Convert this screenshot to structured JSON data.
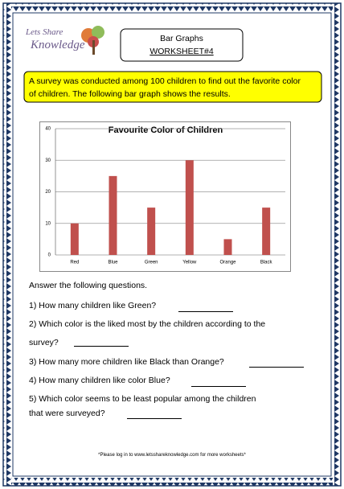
{
  "logo": {
    "line1": "Lets Share",
    "line2": "Knowledge"
  },
  "header": {
    "title": "Bar Graphs",
    "subtitle": "WORKSHEET#4"
  },
  "intro": {
    "line1": "A survey was conducted among 100 children to find out the favorite color",
    "line2": "of children. The following bar graph shows the results."
  },
  "chart_data": {
    "type": "bar",
    "title": "Favourite Color of Children",
    "categories": [
      "Red",
      "Blue",
      "Green",
      "Yellow",
      "Orange",
      "Black"
    ],
    "values": [
      10,
      25,
      15,
      30,
      5,
      15
    ],
    "color": "#c0504d",
    "ylim": [
      0,
      40
    ],
    "yticks": [
      0,
      10,
      20,
      30,
      40
    ],
    "grid": true
  },
  "instructions": "Answer the following questions.",
  "questions": [
    {
      "lines": [
        "1) How many children like Green?"
      ]
    },
    {
      "lines": [
        "2) Which color is the liked most by the children according to the",
        "survey?"
      ]
    },
    {
      "lines": [
        "3) How many more children like Black than Orange?"
      ]
    },
    {
      "lines": [
        "4) How many children like color Blue?"
      ]
    },
    {
      "lines": [
        "5) Which color seems to be least popular among the children",
        "that were surveyed?"
      ]
    }
  ],
  "footer": "*Please log in to www.letsshareknowledge.com for more worksheets*"
}
